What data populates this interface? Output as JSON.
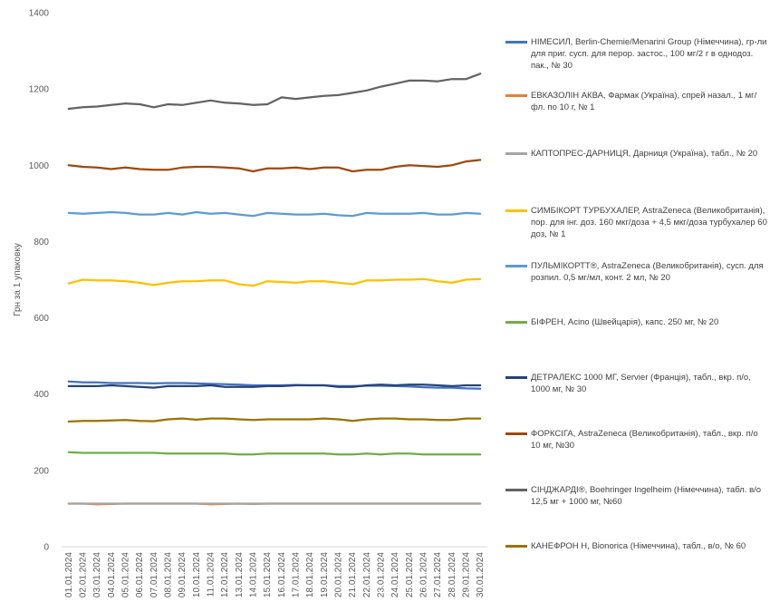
{
  "chart_data": {
    "type": "line",
    "ylabel": "Грн за 1 упаковку",
    "ylim": [
      0,
      1400
    ],
    "yticks": [
      0,
      200,
      400,
      600,
      800,
      1000,
      1200,
      1400
    ],
    "grid": false,
    "legend_position": "right",
    "x": [
      "01.01.2024",
      "02.01.2024",
      "03.01.2024",
      "04.01.2024",
      "05.01.2024",
      "06.01.2024",
      "07.01.2024",
      "08.01.2024",
      "09.01.2024",
      "10.01.2024",
      "11.01.2024",
      "12.01.2024",
      "13.01.2024",
      "14.01.2024",
      "15.01.2024",
      "16.01.2024",
      "17.01.2024",
      "18.01.2024",
      "19.01.2024",
      "20.01.2024",
      "21.01.2024",
      "22.01.2024",
      "23.01.2024",
      "24.01.2024",
      "25.01.2024",
      "26.01.2024",
      "27.01.2024",
      "28.01.2024",
      "29.01.2024",
      "30.01.2024"
    ],
    "series": [
      {
        "name": "НІМЕСИЛ, Berlin-Chemie/Menarini Group (Німеччина), гр-ли для приг. сусп. для перор. застос., 100 мг/2 г в однодоз. пак., № 30",
        "color": "#4472C4",
        "values": [
          433,
          431,
          431,
          429,
          429,
          429,
          428,
          429,
          429,
          428,
          427,
          426,
          425,
          423,
          423,
          423,
          424,
          423,
          423,
          421,
          421,
          422,
          422,
          421,
          420,
          418,
          417,
          417,
          415,
          414
        ]
      },
      {
        "name": "ЕВКАЗОЛІН АКВА, Фармак (Україна), спрей назал., 1 мг/фл. по 10 г, № 1",
        "color": "#ED7D31",
        "values": [
          113,
          113,
          111,
          112,
          113,
          113,
          113,
          113,
          113,
          113,
          111,
          112,
          113,
          112,
          113,
          113,
          113,
          113,
          113,
          113,
          113,
          113,
          113,
          113,
          113,
          113,
          113,
          113,
          113,
          113
        ]
      },
      {
        "name": "КАПТОПРЕС-ДАРНИЦЯ, Дарниця (Україна), табл., № 20",
        "color": "#A5A5A5",
        "values": [
          113,
          113,
          113,
          113,
          113,
          113,
          113,
          113,
          113,
          113,
          113,
          113,
          113,
          113,
          113,
          113,
          113,
          113,
          113,
          113,
          113,
          113,
          113,
          113,
          113,
          113,
          113,
          113,
          113,
          113
        ]
      },
      {
        "name": "СИМБІКОРТ ТУРБУХАЛЕР, AstraZeneca (Великобританія), пор. для інг. доз. 160 мкг/доза + 4,5 мкг/доза турбухалер 60 доз, № 1",
        "color": "#FFC000",
        "values": [
          690,
          700,
          698,
          698,
          696,
          692,
          686,
          692,
          696,
          696,
          698,
          698,
          688,
          684,
          696,
          694,
          692,
          696,
          696,
          692,
          688,
          698,
          698,
          700,
          700,
          702,
          696,
          692,
          700,
          702
        ]
      },
      {
        "name": "ПУЛЬМІКОРТТ®, AstraZeneca (Великобританія), сусп. для розпил. 0,5 мг/мл, конт. 2 мл, № 20",
        "color": "#5B9BD5",
        "values": [
          875,
          873,
          875,
          877,
          875,
          871,
          871,
          875,
          871,
          877,
          873,
          875,
          871,
          867,
          875,
          873,
          871,
          871,
          873,
          869,
          867,
          875,
          873,
          873,
          873,
          875,
          871,
          871,
          875,
          873
        ]
      },
      {
        "name": "БІФРЕН, Acino (Швейцарія), капс. 250 мг, № 20",
        "color": "#70AD47",
        "values": [
          248,
          246,
          246,
          246,
          246,
          246,
          246,
          244,
          244,
          244,
          244,
          244,
          242,
          242,
          244,
          244,
          244,
          244,
          244,
          242,
          242,
          244,
          242,
          244,
          244,
          242,
          242,
          242,
          242,
          242
        ]
      },
      {
        "name": "ДЕТРАЛЕКС 1000 МГ, Servier (Франція), табл., вкр. п/о, 1000 мг, № 30",
        "color": "#264478",
        "values": [
          421,
          421,
          421,
          423,
          421,
          419,
          417,
          421,
          421,
          421,
          423,
          419,
          419,
          419,
          421,
          421,
          423,
          423,
          423,
          419,
          419,
          423,
          425,
          423,
          425,
          425,
          423,
          421,
          423,
          423
        ]
      },
      {
        "name": "ФОРКСІГА, AstraZeneca (Великобританія), табл., вкр. п/о 10 мг, №30",
        "color": "#9E480E",
        "values": [
          1000,
          996,
          994,
          990,
          994,
          990,
          988,
          988,
          994,
          996,
          996,
          994,
          992,
          984,
          992,
          992,
          994,
          990,
          994,
          994,
          984,
          988,
          988,
          996,
          1000,
          998,
          996,
          1000,
          1010,
          1014
        ]
      },
      {
        "name": "СІНДЖАРДІ®, Boehringer Ingelheim (Німеччина), табл. в/о 12,5 мг + 1000 мг, №60",
        "color": "#636363",
        "values": [
          1148,
          1152,
          1154,
          1158,
          1162,
          1160,
          1152,
          1160,
          1158,
          1164,
          1170,
          1164,
          1162,
          1158,
          1160,
          1178,
          1174,
          1178,
          1182,
          1184,
          1190,
          1196,
          1206,
          1214,
          1222,
          1222,
          1220,
          1226,
          1226,
          1240
        ]
      },
      {
        "name": "КАНЕФРОН Н, Bionorica (Німеччина), табл., в/о, № 60",
        "color": "#997300",
        "values": [
          328,
          330,
          330,
          331,
          332,
          330,
          329,
          334,
          336,
          333,
          336,
          336,
          334,
          332,
          334,
          334,
          334,
          334,
          336,
          334,
          330,
          334,
          336,
          336,
          334,
          334,
          332,
          332,
          336,
          336
        ]
      }
    ]
  }
}
